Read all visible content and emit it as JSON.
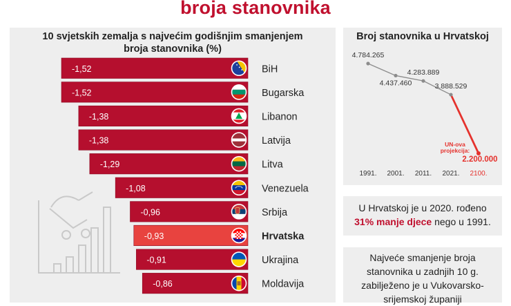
{
  "headline": "broja stanovnika",
  "left_chart": {
    "title_line1": "10 svjetskih zemalja s najvećim godišnjim smanjenjem",
    "title_line2": "broja stanovnika (%)",
    "colors": {
      "bar": "#b50f2e",
      "highlight": "#e8433f",
      "bar_edge": "#8c0a22"
    }
  },
  "right_chart": {
    "title": "Broj stanovnika u Hrvatskoj",
    "point_labels": [
      "4.784.265",
      "4.437.460",
      "4.283.889",
      "3.888.529"
    ],
    "projection_label_line1": "UN-ova",
    "projection_label_line2": "projekcija:",
    "projection_value_label": "2.200.000",
    "colors": {
      "line": "#8c8c8c",
      "projection": "#e5322d"
    }
  },
  "births_box": {
    "text_before": "U Hrvatskoj je u 2020. rođeno",
    "highlight": "31% manje djece",
    "text_after": "nego u 1991."
  },
  "decline_box": {
    "text": "Najveće smanjenje broja stanovnika u zadnjih 10 g. zabilježeno je u Vukovarsko-srijemskoj županiji"
  },
  "chart_data": [
    {
      "type": "bar",
      "title": "10 svjetskih zemalja s najvećim godišnjim smanjenjem broja stanovnika (%)",
      "categories": [
        "BiH",
        "Bugarska",
        "Libanon",
        "Latvija",
        "Litva",
        "Venezuela",
        "Srbija",
        "Hrvatska",
        "Ukrajina",
        "Moldavija"
      ],
      "values": [
        -1.52,
        -1.52,
        -1.38,
        -1.38,
        -1.29,
        -1.08,
        -0.96,
        -0.93,
        -0.91,
        -0.86
      ],
      "value_labels": [
        "-1,52",
        "-1,52",
        "-1,38",
        "-1,38",
        "-1,29",
        "-1,08",
        "-0,96",
        "-0,93",
        "-0,91",
        "-0,86"
      ],
      "highlight_category": "Hrvatska",
      "flags": [
        "flag-bih",
        "flag-bulgaria",
        "flag-lebanon",
        "flag-latvia",
        "flag-lithuania",
        "flag-venezuela",
        "flag-serbia",
        "flag-croatia",
        "flag-ukraine",
        "flag-moldova"
      ]
    },
    {
      "type": "line",
      "title": "Broj stanovnika u Hrvatskoj",
      "x_tick_labels": [
        "1991.",
        "2001.",
        "2011.",
        "2021.",
        "2100."
      ],
      "series": [
        {
          "x": [
            1991,
            2001,
            2011,
            2021
          ],
          "values": [
            4784265,
            4437460,
            4283889,
            3888529
          ]
        },
        {
          "x": [
            2021,
            2100
          ],
          "values": [
            3888529,
            2200000
          ]
        }
      ]
    }
  ]
}
